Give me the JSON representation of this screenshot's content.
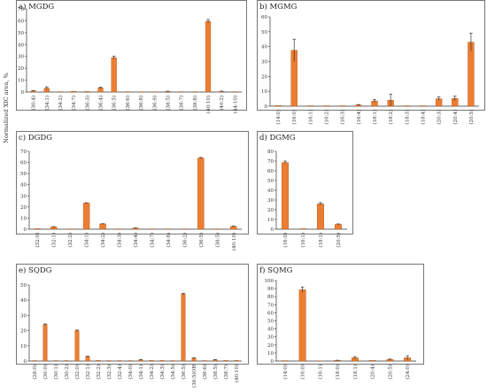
{
  "figure": {
    "ylabel": "Normalized XIC area, %"
  },
  "chart_data": [
    {
      "type": "bar",
      "title": "a) MGDG",
      "ylim": [
        0,
        70
      ],
      "yticks": [
        0,
        10,
        20,
        30,
        40,
        50,
        60,
        70
      ],
      "categories": [
        "(30:4)",
        "(34:1)",
        "(34:2)",
        "(34:7)",
        "(36:3)",
        "(36:4)",
        "(36:5)",
        "(36:6)",
        "(36:8)",
        "(36:9)",
        "(38:5)",
        "(38:7)",
        "(38:8)",
        "(40:10)",
        "(40:2)",
        "(44:10)"
      ],
      "values": [
        1.0,
        3.2,
        0.3,
        0.6,
        0.5,
        3.5,
        29,
        0.3,
        0.2,
        0.2,
        0.5,
        0.3,
        0.3,
        59.5,
        0.6,
        0.3
      ],
      "errors": [
        0.2,
        1.2,
        0,
        0,
        0,
        0.6,
        1.2,
        0,
        0,
        0,
        0.2,
        0,
        0,
        1.5,
        0.2,
        0
      ]
    },
    {
      "type": "bar",
      "title": "b) MGMG",
      "ylim": [
        0,
        60
      ],
      "yticks": [
        0,
        10,
        20,
        30,
        40,
        50,
        60
      ],
      "categories": [
        "(14:0)",
        "(16:0)",
        "(16:1)",
        "(16:2)",
        "(16:3)",
        "(16:4)",
        "(18:1)",
        "(18:2)",
        "(18:3)",
        "(18:4)",
        "(20:3)",
        "(20:4)",
        "(20:5)"
      ],
      "values": [
        0.5,
        37.5,
        0.3,
        0.3,
        0.3,
        0.8,
        3.5,
        4,
        0.3,
        0.3,
        5,
        5.2,
        43
      ],
      "errors": [
        0,
        7.5,
        0,
        0,
        0,
        0.3,
        1,
        4,
        0,
        0,
        1.2,
        1.5,
        6
      ]
    },
    {
      "type": "bar",
      "title": "c) DGDG",
      "ylim": [
        0,
        70
      ],
      "yticks": [
        0,
        10,
        20,
        30,
        40,
        50,
        60,
        70
      ],
      "categories": [
        "(32:0)",
        "(32:1)",
        "(32:2)",
        "(34:1)",
        "(34:2)",
        "(34:3)",
        "(34:4)",
        "(34:7)",
        "(34:8)",
        "(36:2)",
        "(36:5)",
        "(38:5)",
        "(40:10)"
      ],
      "values": [
        0.5,
        2,
        0.3,
        23.5,
        4.8,
        0.3,
        1,
        0.3,
        0.3,
        0.3,
        64,
        0.3,
        2.5
      ],
      "errors": [
        0,
        0.3,
        0,
        0.3,
        0.2,
        0,
        0.2,
        0,
        0,
        0,
        0.5,
        0,
        0.3
      ]
    },
    {
      "type": "bar",
      "title": "d) DGMG",
      "ylim": [
        0,
        80
      ],
      "yticks": [
        0,
        10,
        20,
        30,
        40,
        50,
        60,
        70,
        80
      ],
      "categories": [
        "(16:0)",
        "(16:1)",
        "(18:1)",
        "(20:5)"
      ],
      "values": [
        68.5,
        0.5,
        26,
        5
      ],
      "errors": [
        1.5,
        0,
        1.3,
        0.5
      ]
    },
    {
      "type": "bar",
      "title": "e) SQDG",
      "ylim": [
        0,
        50
      ],
      "yticks": [
        0,
        10,
        20,
        30,
        40,
        50
      ],
      "categories": [
        "(28:0)",
        "(30:0)",
        "(30:1)",
        "(30:2)",
        "(32:0)",
        "(32:1)",
        "(32:2)",
        "(32:3)",
        "(32:4)",
        "(34:0)",
        "(34:1)",
        "(34:2)",
        "(34:3)",
        "(34:5)",
        "(36:5)",
        "(36:5)OH",
        "(36:6)",
        "(38:5)",
        "(38:7)",
        "(40:10)"
      ],
      "values": [
        0.3,
        24,
        0.3,
        0.3,
        20,
        3,
        0.5,
        0.3,
        0.3,
        0.3,
        0.8,
        0.5,
        0.5,
        0.3,
        44,
        2,
        0.3,
        0.8,
        0.5,
        0.5
      ],
      "errors": [
        0,
        0.4,
        0,
        0,
        0.4,
        0.2,
        0,
        0,
        0,
        0,
        0.2,
        0,
        0,
        0,
        0.5,
        0.2,
        0,
        0.2,
        0,
        0
      ]
    },
    {
      "type": "bar",
      "title": "f) SQMG",
      "ylim": [
        0,
        100
      ],
      "yticks": [
        0,
        10,
        20,
        30,
        40,
        50,
        60,
        70,
        80,
        90,
        100
      ],
      "categories": [
        "(14:0)",
        "(16:0)",
        "(16:1)",
        "(18:0)",
        "(18:1)",
        "(20:4)",
        "(20:5)",
        "(24:0)"
      ],
      "values": [
        0.5,
        88.5,
        0.3,
        0.8,
        4,
        0.8,
        2,
        4
      ],
      "errors": [
        0,
        3.5,
        0,
        0.2,
        1.5,
        0,
        0.5,
        2.5
      ]
    }
  ],
  "colors": {
    "bar": "#ed7d31",
    "bar_edge": "#a9541b",
    "axis": "#333333",
    "panel_border": "#555555"
  }
}
